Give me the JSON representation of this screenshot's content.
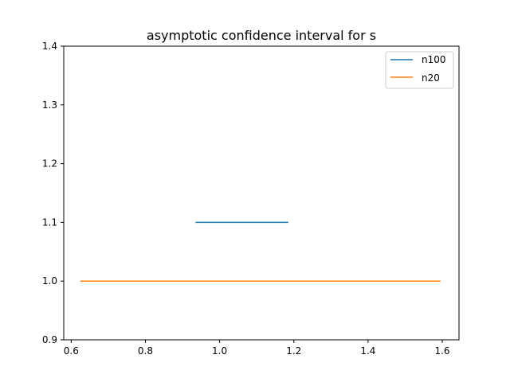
{
  "chart_data": {
    "type": "line",
    "title": "asymptotic confidence interval for s",
    "xlabel": "",
    "ylabel": "",
    "xlim": [
      0.58,
      1.645
    ],
    "ylim": [
      0.9,
      1.4
    ],
    "xticks": [
      0.6,
      0.8,
      1.0,
      1.2,
      1.4,
      1.6
    ],
    "xtick_labels": [
      "0.6",
      "0.8",
      "1.0",
      "1.2",
      "1.4",
      "1.6"
    ],
    "yticks": [
      0.9,
      1.0,
      1.1,
      1.2,
      1.3,
      1.4
    ],
    "ytick_labels": [
      "0.9",
      "1.0",
      "1.1",
      "1.2",
      "1.3",
      "1.4"
    ],
    "grid": false,
    "legend_position": "top-right",
    "series": [
      {
        "name": "n100",
        "color": "#1f77b4",
        "x": [
          0.935,
          1.185
        ],
        "y": [
          1.1,
          1.1
        ]
      },
      {
        "name": "n20",
        "color": "#ff7f0e",
        "x": [
          0.625,
          1.595
        ],
        "y": [
          1.0,
          1.0
        ]
      }
    ]
  }
}
